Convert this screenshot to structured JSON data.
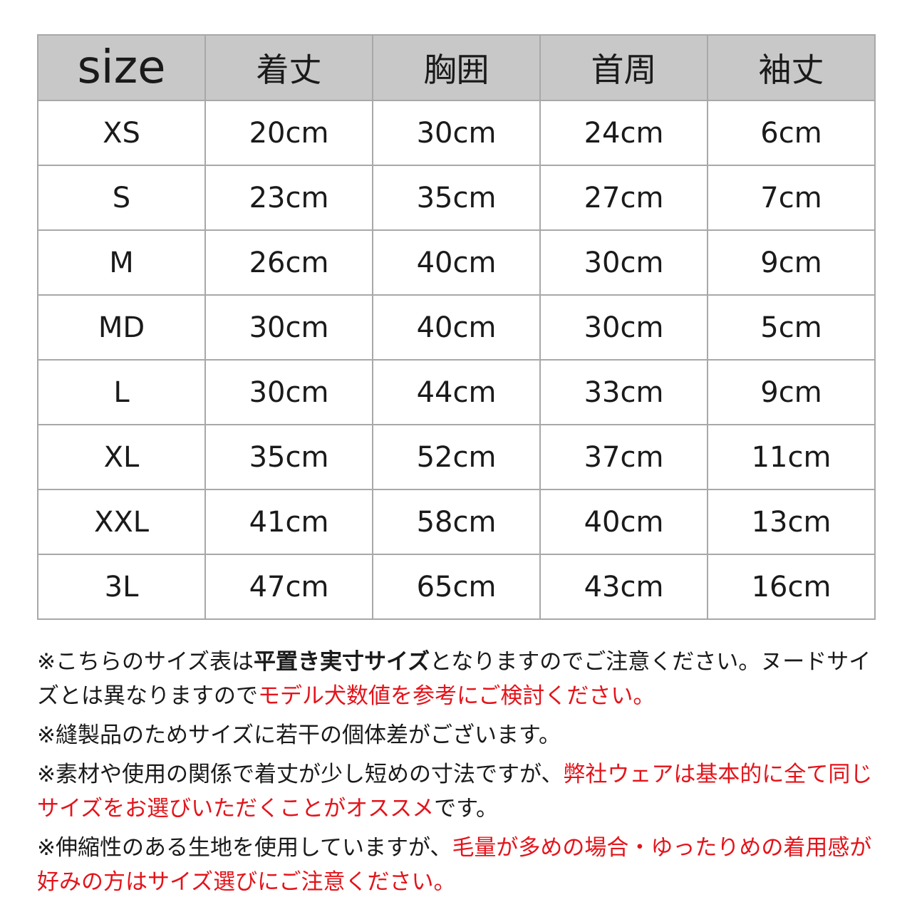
{
  "table": {
    "header": [
      "size",
      "着丈",
      "胸囲",
      "首周",
      "袖丈"
    ],
    "rows": [
      [
        "XS",
        "20cm",
        "30cm",
        "24cm",
        "6cm"
      ],
      [
        "S",
        "23cm",
        "35cm",
        "27cm",
        "7cm"
      ],
      [
        "M",
        "26cm",
        "40cm",
        "30cm",
        "9cm"
      ],
      [
        "MD",
        "30cm",
        "40cm",
        "30cm",
        "5cm"
      ],
      [
        "L",
        "30cm",
        "44cm",
        "33cm",
        "9cm"
      ],
      [
        "XL",
        "35cm",
        "52cm",
        "37cm",
        "11cm"
      ],
      [
        "XXL",
        "41cm",
        "58cm",
        "40cm",
        "13cm"
      ],
      [
        "3L",
        "47cm",
        "65cm",
        "43cm",
        "16cm"
      ]
    ]
  },
  "notes": [
    [
      {
        "text": "※こちらのサイズ表は"
      },
      {
        "text": "平置き実寸サイズ",
        "bold": true
      },
      {
        "text": "となりますのでご注意ください。ヌードサイズとは異なりますので"
      },
      {
        "text": "モデル犬数値を参考にご検討ください。",
        "color": "#e3141b"
      }
    ],
    [
      {
        "text": "※縫製品のためサイズに若干の個体差がございます。"
      }
    ],
    [
      {
        "text": "※素材や使用の関係で着丈が少し短めの寸法ですが、"
      },
      {
        "text": "弊社ウェアは基本的に全て同じサイズをお選びいただくことがオススメ",
        "color": "#e3141b"
      },
      {
        "text": "です。"
      }
    ],
    [
      {
        "text": "※伸縮性のある生地を使用していますが、"
      },
      {
        "text": "毛量が多めの場合・ゆったりめの着用感が好みの方はサイズ選びにご注意ください。",
        "color": "#e3141b"
      }
    ]
  ]
}
